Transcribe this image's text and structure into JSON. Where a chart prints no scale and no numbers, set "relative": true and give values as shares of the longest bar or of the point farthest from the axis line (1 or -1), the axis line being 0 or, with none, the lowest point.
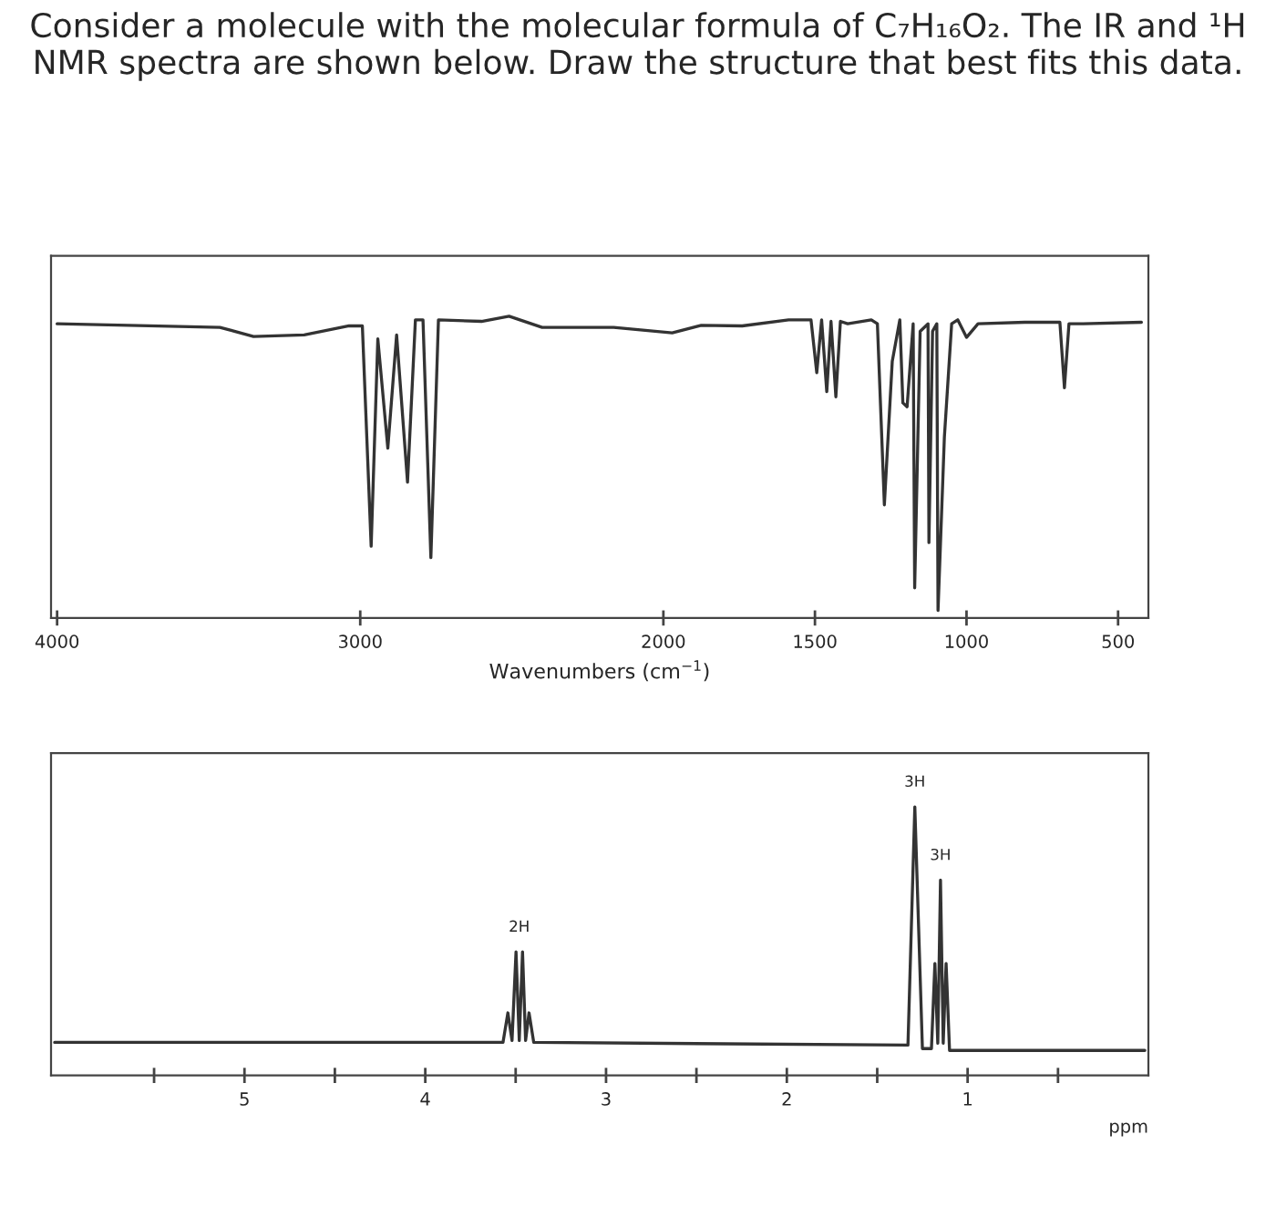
{
  "chart_data": [
    {
      "type": "line",
      "title": "Consider a molecule with the molecular formula of C₇H₁₆O₂. The IR and ¹H NMR spectra are shown below. Draw the structure that best fits this data.",
      "xlabel": "Wavenumbers (cm$^{−1}$)",
      "relative": true,
      "xlim": [
        4020,
        400
      ],
      "xticks": [
        4000,
        3000,
        2000,
        1500,
        1000,
        500
      ],
      "series": [
        {
          "color": "#333333",
          "x": [
            4000,
            3463,
            3352,
            3185,
            3037,
            2993,
            2964,
            2942,
            2909,
            2880,
            2844,
            2818,
            2793,
            2767,
            2742,
            2600,
            2509,
            2400,
            2164,
            1971,
            1875,
            1740,
            1587,
            1513,
            1494,
            1478,
            1461,
            1447,
            1431,
            1416,
            1392,
            1314,
            1294,
            1271,
            1245,
            1220,
            1210,
            1196,
            1176,
            1171,
            1153,
            1127,
            1124,
            1112,
            1098,
            1094,
            1073,
            1049,
            1029,
            1000,
            962,
            808,
            692,
            677,
            662,
            615,
            423
          ],
          "values": [
            0.975,
            0.963,
            0.933,
            0.938,
            0.968,
            0.968,
            0.238,
            0.925,
            0.563,
            0.938,
            0.45,
            0.988,
            0.988,
            0.2,
            0.988,
            0.983,
            1.0,
            0.963,
            0.963,
            0.945,
            0.97,
            0.968,
            0.988,
            0.988,
            0.813,
            0.988,
            0.75,
            0.983,
            0.733,
            0.983,
            0.975,
            0.988,
            0.975,
            0.375,
            0.85,
            0.988,
            0.713,
            0.7,
            0.975,
            0.1,
            0.95,
            0.975,
            0.25,
            0.95,
            0.975,
            0.025,
            0.6,
            0.975,
            0.988,
            0.93,
            0.975,
            0.98,
            0.98,
            0.763,
            0.975,
            0.975,
            0.98
          ]
        }
      ]
    },
    {
      "type": "line",
      "xlabel": "ppm",
      "relative": true,
      "xlim": [
        6.07,
        0
      ],
      "xticks": [
        {
          "value": 5.5,
          "label": null
        },
        5,
        {
          "value": 4.5,
          "label": null
        },
        4,
        {
          "value": 3.5,
          "label": null
        },
        3,
        {
          "value": 2.5,
          "label": null
        },
        2,
        {
          "value": 1.5,
          "label": null
        },
        1,
        {
          "value": 0.5,
          "label": null
        }
      ],
      "annotations": [
        {
          "text": "2H",
          "x": 3.48,
          "y": 0.46
        },
        {
          "text": "3H",
          "x": 1.292,
          "y": 1.0
        },
        {
          "text": "3H",
          "x": 1.15,
          "y": 0.727
        }
      ],
      "series": [
        {
          "color": "#333333",
          "x": [
            6.05,
            3.57,
            3.543,
            3.52,
            3.498,
            3.48,
            3.462,
            3.445,
            3.426,
            3.4,
            1.33,
            1.292,
            1.25,
            1.2,
            1.181,
            1.165,
            1.15,
            1.135,
            1.119,
            1.1,
            0.02
          ],
          "values": [
            0.123,
            0.123,
            0.233,
            0.13,
            0.46,
            0.13,
            0.46,
            0.13,
            0.233,
            0.123,
            0.113,
            1.0,
            0.1,
            0.1,
            0.417,
            0.12,
            0.727,
            0.12,
            0.417,
            0.093,
            0.093
          ]
        }
      ]
    }
  ]
}
